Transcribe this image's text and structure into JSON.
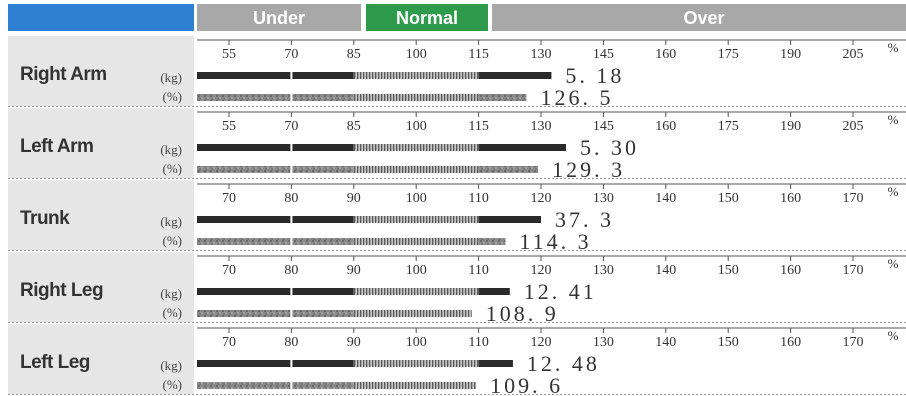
{
  "header": {
    "segments": [
      {
        "label": "Under",
        "color": "#a8a8a8"
      },
      {
        "label": "Normal",
        "color": "#2e9a4c"
      },
      {
        "label": "Over",
        "color": "#a8a8a8"
      }
    ],
    "left_color": "#2f7fd3"
  },
  "chart_data": {
    "type": "bar",
    "percent_symbol": "%",
    "rows": [
      {
        "name": "Right Arm",
        "scale": [
          55,
          70,
          85,
          100,
          115,
          130,
          145,
          160,
          175,
          190,
          205
        ],
        "kg": {
          "unit": "(kg)",
          "value": 5.18,
          "display": "5. 18",
          "bar_percent": 132.5
        },
        "percent": {
          "unit": "(%)",
          "value": 126.5,
          "display": "126. 5"
        }
      },
      {
        "name": "Left Arm",
        "scale": [
          55,
          70,
          85,
          100,
          115,
          130,
          145,
          160,
          175,
          190,
          205
        ],
        "kg": {
          "unit": "(kg)",
          "value": 5.3,
          "display": "5. 30",
          "bar_percent": 136
        },
        "percent": {
          "unit": "(%)",
          "value": 129.3,
          "display": "129. 3"
        }
      },
      {
        "name": "Trunk",
        "scale": [
          70,
          80,
          90,
          100,
          110,
          120,
          130,
          140,
          150,
          160,
          170
        ],
        "kg": {
          "unit": "(kg)",
          "value": 37.3,
          "display": "37. 3",
          "bar_percent": 120
        },
        "percent": {
          "unit": "(%)",
          "value": 114.3,
          "display": "114. 3"
        }
      },
      {
        "name": "Right Leg",
        "scale": [
          70,
          80,
          90,
          100,
          110,
          120,
          130,
          140,
          150,
          160,
          170
        ],
        "kg": {
          "unit": "(kg)",
          "value": 12.41,
          "display": "12. 41",
          "bar_percent": 115
        },
        "percent": {
          "unit": "(%)",
          "value": 108.9,
          "display": "108. 9"
        }
      },
      {
        "name": "Left Leg",
        "scale": [
          70,
          80,
          90,
          100,
          110,
          120,
          130,
          140,
          150,
          160,
          170
        ],
        "kg": {
          "unit": "(kg)",
          "value": 12.48,
          "display": "12. 48",
          "bar_percent": 115.5
        },
        "percent": {
          "unit": "(%)",
          "value": 109.6,
          "display": "109. 6"
        }
      }
    ]
  }
}
